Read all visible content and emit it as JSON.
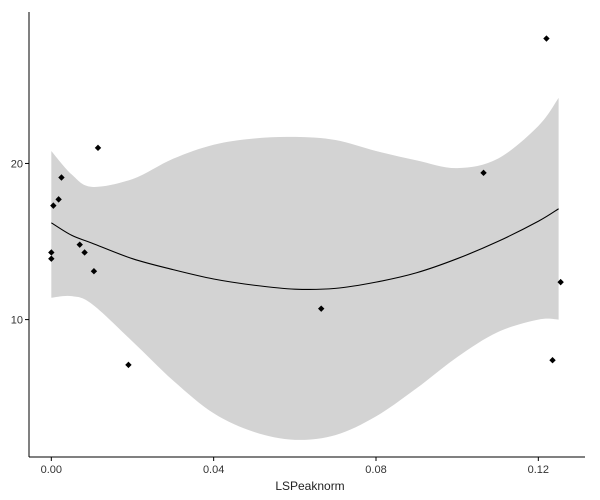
{
  "chart_data": {
    "type": "scatter",
    "title": "",
    "xlabel": "LSPeaknorm",
    "ylabel": "",
    "xlim": [
      -0.0055,
      0.1315
    ],
    "ylim": [
      1.2,
      29.7
    ],
    "x_ticks": [
      {
        "value": 0.0,
        "label": "0.00"
      },
      {
        "value": 0.04,
        "label": "0.04"
      },
      {
        "value": 0.08,
        "label": "0.08"
      },
      {
        "value": 0.12,
        "label": "0.12"
      }
    ],
    "y_ticks": [
      {
        "value": 10,
        "label": "10"
      },
      {
        "value": 20,
        "label": "20"
      }
    ],
    "grid": false,
    "points": [
      {
        "x": 0.0,
        "y": 14.3
      },
      {
        "x": 0.0,
        "y": 13.9
      },
      {
        "x": 0.0005,
        "y": 17.3
      },
      {
        "x": 0.0018,
        "y": 17.7
      },
      {
        "x": 0.0025,
        "y": 19.1
      },
      {
        "x": 0.007,
        "y": 14.8
      },
      {
        "x": 0.0082,
        "y": 14.3
      },
      {
        "x": 0.0105,
        "y": 13.1
      },
      {
        "x": 0.0115,
        "y": 21.0
      },
      {
        "x": 0.019,
        "y": 7.1
      },
      {
        "x": 0.0665,
        "y": 10.7
      },
      {
        "x": 0.1065,
        "y": 19.4
      },
      {
        "x": 0.122,
        "y": 28.0
      },
      {
        "x": 0.1235,
        "y": 7.4
      },
      {
        "x": 0.1255,
        "y": 12.4
      }
    ],
    "smooth_line": [
      {
        "x": 0.0,
        "y": 16.2
      },
      {
        "x": 0.005,
        "y": 15.4
      },
      {
        "x": 0.01,
        "y": 14.9
      },
      {
        "x": 0.02,
        "y": 13.9
      },
      {
        "x": 0.03,
        "y": 13.2
      },
      {
        "x": 0.04,
        "y": 12.6
      },
      {
        "x": 0.05,
        "y": 12.2
      },
      {
        "x": 0.06,
        "y": 11.95
      },
      {
        "x": 0.07,
        "y": 12.0
      },
      {
        "x": 0.08,
        "y": 12.4
      },
      {
        "x": 0.09,
        "y": 13.0
      },
      {
        "x": 0.1,
        "y": 13.9
      },
      {
        "x": 0.11,
        "y": 15.0
      },
      {
        "x": 0.12,
        "y": 16.3
      },
      {
        "x": 0.125,
        "y": 17.1
      }
    ],
    "confidence_band": [
      {
        "x": 0.0,
        "lo": 11.4,
        "hi": 20.8
      },
      {
        "x": 0.005,
        "lo": 11.5,
        "hi": 19.3
      },
      {
        "x": 0.01,
        "lo": 11.0,
        "hi": 18.5
      },
      {
        "x": 0.02,
        "lo": 8.6,
        "hi": 19.0
      },
      {
        "x": 0.03,
        "lo": 6.1,
        "hi": 20.3
      },
      {
        "x": 0.04,
        "lo": 4.0,
        "hi": 21.2
      },
      {
        "x": 0.05,
        "lo": 2.8,
        "hi": 21.6
      },
      {
        "x": 0.06,
        "lo": 2.3,
        "hi": 21.7
      },
      {
        "x": 0.07,
        "lo": 2.6,
        "hi": 21.5
      },
      {
        "x": 0.08,
        "lo": 3.8,
        "hi": 20.8
      },
      {
        "x": 0.09,
        "lo": 5.6,
        "hi": 20.2
      },
      {
        "x": 0.1,
        "lo": 7.6,
        "hi": 19.7
      },
      {
        "x": 0.11,
        "lo": 9.2,
        "hi": 20.3
      },
      {
        "x": 0.12,
        "lo": 10.0,
        "hi": 22.4
      },
      {
        "x": 0.125,
        "lo": 10.0,
        "hi": 24.2
      }
    ],
    "colors": {
      "points": "#000000",
      "line": "#000000",
      "band": "#d3d3d3",
      "axis": "#000000",
      "background": "#ffffff"
    }
  }
}
